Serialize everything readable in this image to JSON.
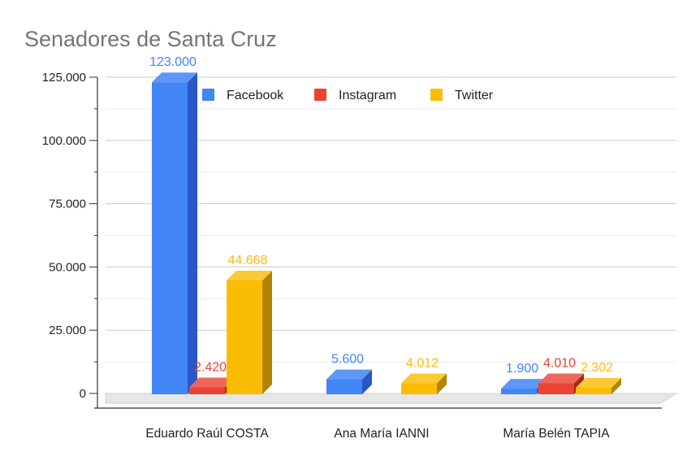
{
  "chart_data": {
    "type": "bar",
    "title": "Senadores de Santa Cruz",
    "categories": [
      "Eduardo Raúl COSTA",
      "Ana María IANNI",
      "María Belén TAPIA"
    ],
    "series": [
      {
        "name": "Facebook",
        "color": "#4285f4",
        "side_color": "#2a56c6",
        "top_color": "#5e97f6",
        "values": [
          123000,
          5600,
          1900
        ],
        "labels": [
          "123.000",
          "5.600",
          "1.900"
        ]
      },
      {
        "name": "Instagram",
        "color": "#ea4335",
        "side_color": "#a52714",
        "top_color": "#ee675c",
        "values": [
          2420,
          0,
          4010
        ],
        "labels": [
          "2.420",
          "",
          "4.010"
        ]
      },
      {
        "name": "Twitter",
        "color": "#fbbc04",
        "side_color": "#b28400",
        "top_color": "#fcc934",
        "values": [
          44668,
          4012,
          2302
        ],
        "labels": [
          "44.668",
          "4.012",
          "2.302"
        ]
      }
    ],
    "yticks": [
      0,
      25000,
      50000,
      75000,
      100000,
      125000
    ],
    "ytick_labels": [
      "0",
      "25.000",
      "50.000",
      "75.000",
      "100.000",
      "125.000"
    ],
    "ylim": [
      0,
      125000
    ],
    "xlabel": "",
    "ylabel": "",
    "legend_position": "top",
    "grid": true,
    "style": "3d"
  }
}
